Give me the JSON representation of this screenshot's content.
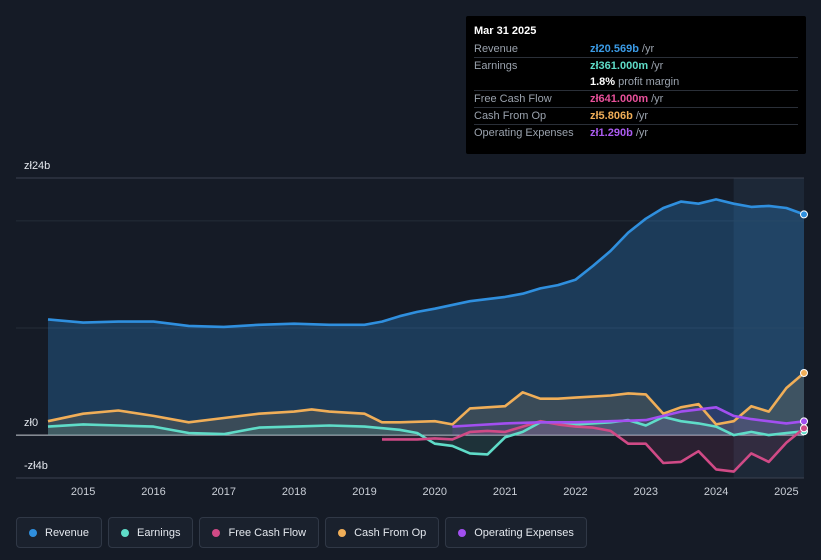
{
  "tooltip": {
    "date": "Mar 31 2025",
    "rows": [
      {
        "label": "Revenue",
        "value": "zł20.569b",
        "unit": "/yr",
        "color": "#3b9be6"
      },
      {
        "label": "Earnings",
        "value": "zł361.000m",
        "unit": "/yr",
        "color": "#5fdcc8"
      },
      {
        "label": "",
        "value": "1.8%",
        "unit": "profit margin",
        "color": "#ffffff"
      },
      {
        "label": "Free Cash Flow",
        "value": "zł641.000m",
        "unit": "/yr",
        "color": "#e8509a"
      },
      {
        "label": "Cash From Op",
        "value": "zł5.806b",
        "unit": "/yr",
        "color": "#f0ae58"
      },
      {
        "label": "Operating Expenses",
        "value": "zł1.290b",
        "unit": "/yr",
        "color": "#ab5cf0"
      }
    ]
  },
  "legend": [
    {
      "label": "Revenue",
      "color": "#2f8fde"
    },
    {
      "label": "Earnings",
      "color": "#5fdcc8"
    },
    {
      "label": "Free Cash Flow",
      "color": "#d04a86"
    },
    {
      "label": "Cash From Op",
      "color": "#f0ae58"
    },
    {
      "label": "Operating Expenses",
      "color": "#a24ff0"
    }
  ],
  "chart_data": {
    "type": "area",
    "ylabel_top": "zł24b",
    "ylabel_zero": "zł0",
    "ylabel_bottom": "-zł4b",
    "ylim": [
      -4,
      24
    ],
    "xlim": [
      2014.5,
      2025.25
    ],
    "forecast_start": 2024.25,
    "x_ticks": [
      "2015",
      "2016",
      "2017",
      "2018",
      "2019",
      "2020",
      "2021",
      "2022",
      "2023",
      "2024",
      "2025"
    ],
    "series": [
      {
        "name": "Revenue",
        "color": "#2f8fde",
        "x": [
          2014.5,
          2015.0,
          2015.5,
          2016.0,
          2016.5,
          2017.0,
          2017.5,
          2018.0,
          2018.5,
          2019.0,
          2019.25,
          2019.5,
          2019.75,
          2020.0,
          2020.5,
          2021.0,
          2021.25,
          2021.5,
          2021.75,
          2022.0,
          2022.25,
          2022.5,
          2022.75,
          2023.0,
          2023.25,
          2023.5,
          2023.75,
          2024.0,
          2024.25,
          2024.5,
          2024.75,
          2025.0,
          2025.25
        ],
        "values": [
          10.8,
          10.5,
          10.6,
          10.6,
          10.2,
          10.1,
          10.3,
          10.4,
          10.3,
          10.3,
          10.6,
          11.1,
          11.5,
          11.8,
          12.5,
          12.9,
          13.2,
          13.7,
          14.0,
          14.5,
          15.8,
          17.2,
          18.9,
          20.2,
          21.2,
          21.8,
          21.6,
          22.0,
          21.6,
          21.3,
          21.4,
          21.2,
          20.6
        ]
      },
      {
        "name": "Earnings",
        "color": "#5fdcc8",
        "x": [
          2014.5,
          2015.0,
          2015.5,
          2016.0,
          2016.5,
          2017.0,
          2017.5,
          2018.0,
          2018.5,
          2019.0,
          2019.5,
          2019.75,
          2020.0,
          2020.25,
          2020.5,
          2020.75,
          2021.0,
          2021.25,
          2021.5,
          2021.75,
          2022.0,
          2022.5,
          2022.75,
          2023.0,
          2023.25,
          2023.5,
          2023.75,
          2024.0,
          2024.25,
          2024.5,
          2024.75,
          2025.0,
          2025.25
        ],
        "values": [
          0.8,
          1.0,
          0.9,
          0.8,
          0.2,
          0.1,
          0.7,
          0.8,
          0.9,
          0.8,
          0.5,
          0.2,
          -0.8,
          -1.0,
          -1.7,
          -1.8,
          -0.2,
          0.3,
          1.2,
          1.2,
          1.0,
          1.2,
          1.4,
          0.9,
          1.7,
          1.3,
          1.1,
          0.8,
          0.0,
          0.3,
          0.0,
          0.2,
          0.36
        ]
      },
      {
        "name": "Free Cash Flow",
        "color": "#d04a86",
        "x": [
          2019.25,
          2019.75,
          2020.0,
          2020.25,
          2020.5,
          2020.75,
          2021.0,
          2021.25,
          2021.5,
          2021.75,
          2022.0,
          2022.25,
          2022.5,
          2022.75,
          2023.0,
          2023.25,
          2023.5,
          2023.75,
          2024.0,
          2024.25,
          2024.5,
          2024.75,
          2025.0,
          2025.25
        ],
        "values": [
          -0.4,
          -0.4,
          -0.3,
          -0.4,
          0.3,
          0.4,
          0.3,
          0.8,
          1.3,
          1.0,
          0.8,
          0.7,
          0.4,
          -0.8,
          -0.8,
          -2.6,
          -2.5,
          -1.5,
          -3.2,
          -3.4,
          -1.7,
          -2.5,
          -0.7,
          0.64
        ]
      },
      {
        "name": "Cash From Op",
        "color": "#f0ae58",
        "x": [
          2014.5,
          2015.0,
          2015.5,
          2016.0,
          2016.5,
          2017.0,
          2017.5,
          2018.0,
          2018.25,
          2018.5,
          2019.0,
          2019.25,
          2019.5,
          2020.0,
          2020.25,
          2020.5,
          2020.75,
          2021.0,
          2021.25,
          2021.5,
          2021.75,
          2022.0,
          2022.5,
          2022.75,
          2023.0,
          2023.25,
          2023.5,
          2023.75,
          2024.0,
          2024.25,
          2024.5,
          2024.75,
          2025.0,
          2025.25
        ],
        "values": [
          1.3,
          2.0,
          2.3,
          1.8,
          1.2,
          1.6,
          2.0,
          2.2,
          2.4,
          2.2,
          2.0,
          1.2,
          1.2,
          1.3,
          1.0,
          2.5,
          2.6,
          2.7,
          4.0,
          3.4,
          3.4,
          3.5,
          3.7,
          3.9,
          3.8,
          2.0,
          2.6,
          2.9,
          1.0,
          1.3,
          2.7,
          2.2,
          4.4,
          5.8
        ]
      },
      {
        "name": "Operating Expenses",
        "color": "#a24ff0",
        "x": [
          2020.25,
          2020.5,
          2021.0,
          2021.5,
          2022.0,
          2022.5,
          2023.0,
          2023.5,
          2024.0,
          2024.25,
          2024.5,
          2025.0,
          2025.25
        ],
        "values": [
          0.8,
          0.9,
          1.1,
          1.2,
          1.2,
          1.3,
          1.4,
          2.2,
          2.6,
          1.8,
          1.5,
          1.1,
          1.29
        ]
      }
    ]
  }
}
